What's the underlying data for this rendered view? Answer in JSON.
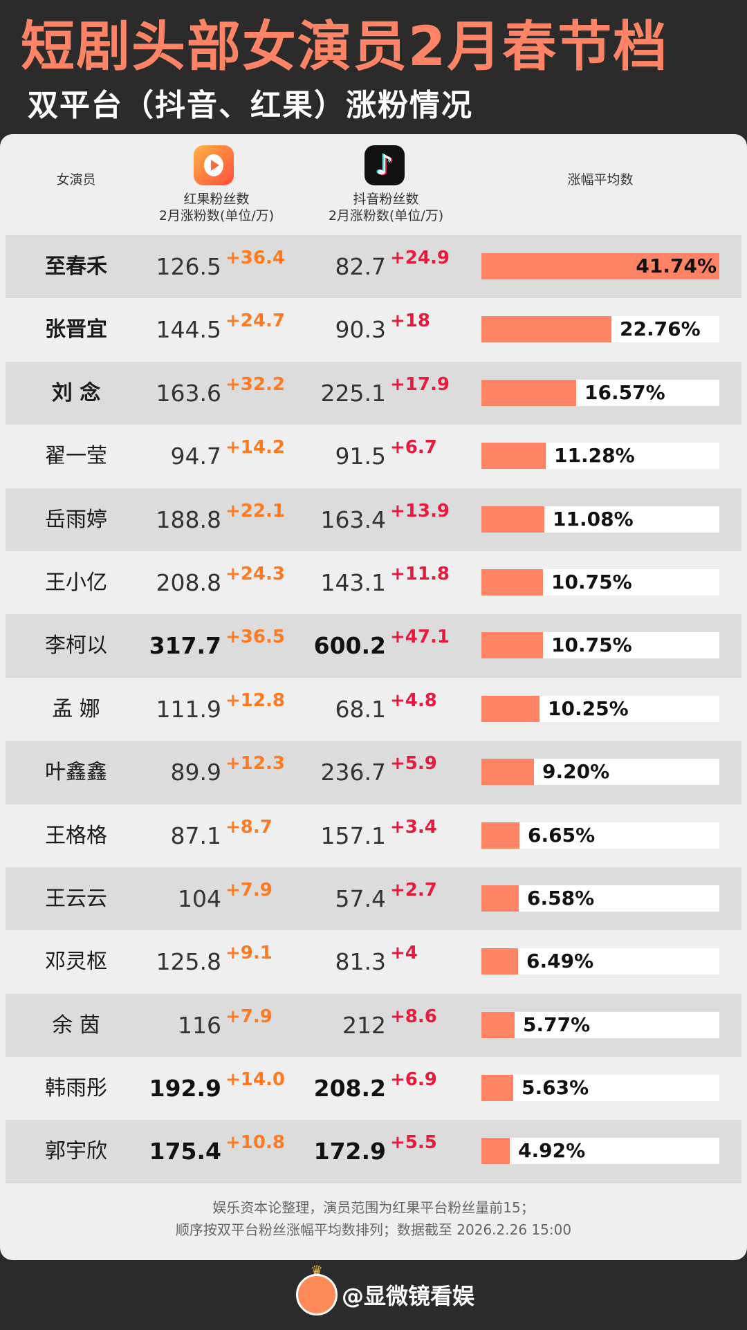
{
  "header": {
    "title": "短剧头部女演员2月春节档",
    "subtitle": "双平台（抖音、红果）涨粉情况"
  },
  "columns": {
    "actress": "女演员",
    "hongguo": "红果粉丝数",
    "hongguo_sub": "2月涨粉数(单位/万)",
    "douyin": "抖音粉丝数",
    "douyin_sub": "2月涨粉数(单位/万)",
    "avg": "涨幅平均数"
  },
  "icons": {
    "hongguo": "hongguo-app-icon",
    "douyin": "douyin-app-icon"
  },
  "colors": {
    "accent": "#ff8466",
    "hongguo_gain": "#ff7a1f",
    "douyin_gain": "#e8193c",
    "row_shade": "#dcdcdc"
  },
  "chart_data": {
    "type": "table",
    "rows": [
      {
        "name": "至春禾",
        "hg": "126.5",
        "hg_gain": "+36.4",
        "dy": "82.7",
        "dy_gain": "+24.9",
        "avg": "41.74%",
        "avg_value": 41.74
      },
      {
        "name": "张晋宜",
        "hg": "144.5",
        "hg_gain": "+24.7",
        "dy": "90.3",
        "dy_gain": "+18",
        "avg": "22.76%",
        "avg_value": 22.76
      },
      {
        "name": "刘 念",
        "hg": "163.6",
        "hg_gain": "+32.2",
        "dy": "225.1",
        "dy_gain": "+17.9",
        "avg": "16.57%",
        "avg_value": 16.57
      },
      {
        "name": "翟一莹",
        "hg": "94.7",
        "hg_gain": "+14.2",
        "dy": "91.5",
        "dy_gain": "+6.7",
        "avg": "11.28%",
        "avg_value": 11.28
      },
      {
        "name": "岳雨婷",
        "hg": "188.8",
        "hg_gain": "+22.1",
        "dy": "163.4",
        "dy_gain": "+13.9",
        "avg": "11.08%",
        "avg_value": 11.08
      },
      {
        "name": "王小亿",
        "hg": "208.8",
        "hg_gain": "+24.3",
        "dy": "143.1",
        "dy_gain": "+11.8",
        "avg": "10.75%",
        "avg_value": 10.75
      },
      {
        "name": "李柯以",
        "hg": "317.7",
        "hg_gain": "+36.5",
        "dy": "600.2",
        "dy_gain": "+47.1",
        "avg": "10.75%",
        "avg_value": 10.75
      },
      {
        "name": "孟 娜",
        "hg": "111.9",
        "hg_gain": "+12.8",
        "dy": "68.1",
        "dy_gain": "+4.8",
        "avg": "10.25%",
        "avg_value": 10.25
      },
      {
        "name": "叶鑫鑫",
        "hg": "89.9",
        "hg_gain": "+12.3",
        "dy": "236.7",
        "dy_gain": "+5.9",
        "avg": "9.20%",
        "avg_value": 9.2
      },
      {
        "name": "王格格",
        "hg": "87.1",
        "hg_gain": "+8.7",
        "dy": "157.1",
        "dy_gain": "+3.4",
        "avg": "6.65%",
        "avg_value": 6.65
      },
      {
        "name": "王云云",
        "hg": "104",
        "hg_gain": "+7.9",
        "dy": "57.4",
        "dy_gain": "+2.7",
        "avg": "6.58%",
        "avg_value": 6.58
      },
      {
        "name": "邓灵枢",
        "hg": "125.8",
        "hg_gain": "+9.1",
        "dy": "81.3",
        "dy_gain": "+4",
        "avg": "6.49%",
        "avg_value": 6.49
      },
      {
        "name": "余 茵",
        "hg": "116",
        "hg_gain": "+7.9",
        "dy": "212",
        "dy_gain": "+8.6",
        "avg": "5.77%",
        "avg_value": 5.77
      },
      {
        "name": "韩雨彤",
        "hg": "192.9",
        "hg_gain": "+14.0",
        "dy": "208.2",
        "dy_gain": "+6.9",
        "avg": "5.63%",
        "avg_value": 5.63
      },
      {
        "name": "郭宇欣",
        "hg": "175.4",
        "hg_gain": "+10.8",
        "dy": "172.9",
        "dy_gain": "+5.5",
        "avg": "4.92%",
        "avg_value": 4.92
      }
    ],
    "bar_max": 41.74
  },
  "footnote": {
    "line1": "娱乐资本论整理，演员范围为红果平台粉丝量前15；",
    "line2": "顺序按双平台粉丝涨幅平均数排列；数据截至 2026.2.26 15:00"
  },
  "watermark": {
    "text": "@显微镜看娱"
  }
}
